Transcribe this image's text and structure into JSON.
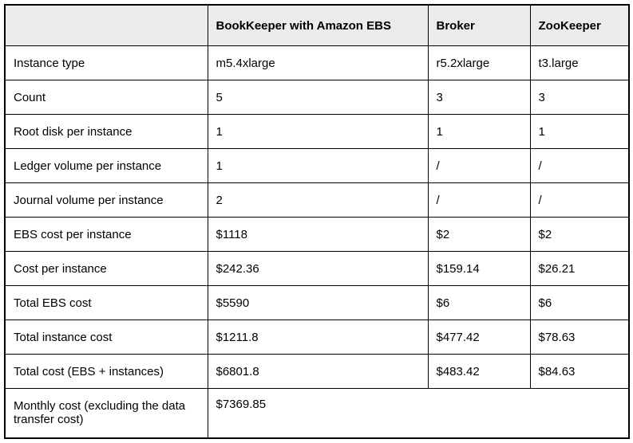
{
  "table": {
    "header_bg": "#ebebeb",
    "border_color": "#000000",
    "text_color": "#000000",
    "columns": [
      "",
      "BookKeeper with Amazon EBS",
      "Broker",
      "ZooKeeper"
    ],
    "rows": [
      {
        "label": "Instance type",
        "values": [
          "m5.4xlarge",
          "r5.2xlarge",
          "t3.large"
        ]
      },
      {
        "label": "Count",
        "values": [
          "5",
          "3",
          "3"
        ]
      },
      {
        "label": "Root disk per instance",
        "values": [
          "1",
          "1",
          "1"
        ]
      },
      {
        "label": "Ledger volume per instance",
        "values": [
          "1",
          "/",
          "/"
        ]
      },
      {
        "label": "Journal volume per instance",
        "values": [
          "2",
          "/",
          "/"
        ]
      },
      {
        "label": "EBS cost per instance",
        "values": [
          "$1118",
          "$2",
          "$2"
        ]
      },
      {
        "label": "Cost per instance",
        "values": [
          "$242.36",
          "$159.14",
          "$26.21"
        ]
      },
      {
        "label": "Total EBS cost",
        "values": [
          "$5590",
          "$6",
          "$6"
        ]
      },
      {
        "label": "Total instance cost",
        "values": [
          "$1211.8",
          "$477.42",
          "$78.63"
        ]
      },
      {
        "label": "Total cost (EBS + instances)",
        "values": [
          "$6801.8",
          "$483.42",
          "$84.63"
        ]
      },
      {
        "label": "Monthly cost (excluding the data transfer cost)",
        "values": [
          "$7369.85"
        ],
        "colspan": 3
      }
    ]
  }
}
